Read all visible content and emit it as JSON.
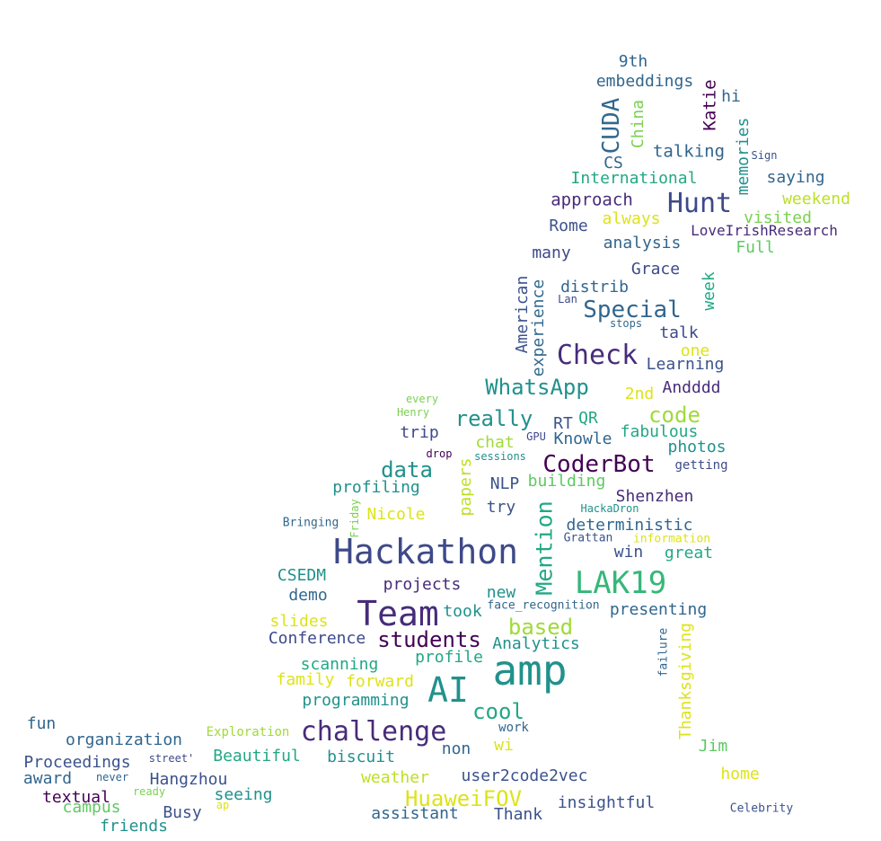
{
  "words": [
    {
      "text": "9th",
      "color": "#31668e",
      "rotate": false
    },
    {
      "text": "embeddings",
      "color": "#31668e",
      "rotate": false
    },
    {
      "text": "Katie",
      "color": "#440154",
      "rotate": true
    },
    {
      "text": "hi",
      "color": "#31668e",
      "rotate": false
    },
    {
      "text": "CUDA",
      "color": "#31688e",
      "rotate": true
    },
    {
      "text": "China",
      "color": "#7ad151",
      "rotate": true
    },
    {
      "text": "memories",
      "color": "#21918c",
      "rotate": true
    },
    {
      "text": "Sign",
      "color": "#3b528b",
      "rotate": false
    },
    {
      "text": "talking",
      "color": "#31668e",
      "rotate": false
    },
    {
      "text": "CS",
      "color": "#31668e",
      "rotate": false
    },
    {
      "text": "International",
      "color": "#22a884",
      "rotate": false
    },
    {
      "text": "saying",
      "color": "#31668e",
      "rotate": false
    },
    {
      "text": "Hunt",
      "color": "#3e4989",
      "rotate": false
    },
    {
      "text": "approach",
      "color": "#472c7a",
      "rotate": false
    },
    {
      "text": "weekend",
      "color": "#bddf26",
      "rotate": false
    },
    {
      "text": "always",
      "color": "#dde318",
      "rotate": false
    },
    {
      "text": "visited",
      "color": "#7ad151",
      "rotate": false
    },
    {
      "text": "Rome",
      "color": "#3b528b",
      "rotate": false
    },
    {
      "text": "LoveIrishResearch",
      "color": "#472c7a",
      "rotate": false
    },
    {
      "text": "analysis",
      "color": "#31668e",
      "rotate": false
    },
    {
      "text": "Full",
      "color": "#5ec962",
      "rotate": false
    },
    {
      "text": "many",
      "color": "#3e4989",
      "rotate": false
    },
    {
      "text": "Grace",
      "color": "#3e4989",
      "rotate": false
    },
    {
      "text": "American",
      "color": "#3b528b",
      "rotate": true
    },
    {
      "text": "experience",
      "color": "#31688e",
      "rotate": true
    },
    {
      "text": "distrib",
      "color": "#31668e",
      "rotate": false
    },
    {
      "text": "week",
      "color": "#22a884",
      "rotate": true
    },
    {
      "text": "Lan",
      "color": "#3e4989",
      "rotate": false
    },
    {
      "text": "Special",
      "color": "#31668e",
      "rotate": false
    },
    {
      "text": "stops",
      "color": "#31688e",
      "rotate": false
    },
    {
      "text": "talk",
      "color": "#3e4989",
      "rotate": false
    },
    {
      "text": "Check",
      "color": "#472c7a",
      "rotate": false
    },
    {
      "text": "one",
      "color": "#dde318",
      "rotate": false
    },
    {
      "text": "Learning",
      "color": "#3b528b",
      "rotate": false
    },
    {
      "text": "every",
      "color": "#7ad151",
      "rotate": false
    },
    {
      "text": "WhatsApp",
      "color": "#21918c",
      "rotate": false
    },
    {
      "text": "2nd",
      "color": "#dde318",
      "rotate": false
    },
    {
      "text": "Andddd",
      "color": "#472c7a",
      "rotate": false
    },
    {
      "text": "Henry",
      "color": "#7ad151",
      "rotate": false
    },
    {
      "text": "really",
      "color": "#21918c",
      "rotate": false
    },
    {
      "text": "code",
      "color": "#a0da39",
      "rotate": false
    },
    {
      "text": "RT",
      "color": "#3b528b",
      "rotate": false
    },
    {
      "text": "QR",
      "color": "#22a884",
      "rotate": false
    },
    {
      "text": "trip",
      "color": "#3e4989",
      "rotate": false
    },
    {
      "text": "fabulous",
      "color": "#22a884",
      "rotate": false
    },
    {
      "text": "Knowle",
      "color": "#31668e",
      "rotate": false
    },
    {
      "text": "chat",
      "color": "#a0da39",
      "rotate": false
    },
    {
      "text": "GPU",
      "color": "#3e4989",
      "rotate": false
    },
    {
      "text": "photos",
      "color": "#21918c",
      "rotate": false
    },
    {
      "text": "drop",
      "color": "#440154",
      "rotate": false
    },
    {
      "text": "sessions",
      "color": "#21918c",
      "rotate": false
    },
    {
      "text": "getting",
      "color": "#3e4989",
      "rotate": false
    },
    {
      "text": "data",
      "color": "#21918c",
      "rotate": false
    },
    {
      "text": "papers",
      "color": "#bddf26",
      "rotate": true
    },
    {
      "text": "CoderBot",
      "color": "#440154",
      "rotate": false
    },
    {
      "text": "NLP",
      "color": "#3b528b",
      "rotate": false
    },
    {
      "text": "building",
      "color": "#5ec962",
      "rotate": false
    },
    {
      "text": "profiling",
      "color": "#21918c",
      "rotate": false
    },
    {
      "text": "Shenzhen",
      "color": "#472c7a",
      "rotate": false
    },
    {
      "text": "try",
      "color": "#3b528b",
      "rotate": false
    },
    {
      "text": "Mention",
      "color": "#22a884",
      "rotate": true
    },
    {
      "text": "HackaDron",
      "color": "#21918c",
      "rotate": false
    },
    {
      "text": "Nicole",
      "color": "#dde318",
      "rotate": false
    },
    {
      "text": "Friday",
      "color": "#7ad151",
      "rotate": true
    },
    {
      "text": "deterministic",
      "color": "#31668e",
      "rotate": false
    },
    {
      "text": "Bringing",
      "color": "#31668e",
      "rotate": false
    },
    {
      "text": "Grattan",
      "color": "#3b528b",
      "rotate": false
    },
    {
      "text": "information",
      "color": "#dde318",
      "rotate": false
    },
    {
      "text": "Hackathon",
      "color": "#3e4989",
      "rotate": false
    },
    {
      "text": "win",
      "color": "#3b528b",
      "rotate": false
    },
    {
      "text": "great",
      "color": "#22a884",
      "rotate": false
    },
    {
      "text": "CSEDM",
      "color": "#21918c",
      "rotate": false
    },
    {
      "text": "LAK19",
      "color": "#35b779",
      "rotate": false
    },
    {
      "text": "projects",
      "color": "#472c7a",
      "rotate": false
    },
    {
      "text": "demo",
      "color": "#31688e",
      "rotate": false
    },
    {
      "text": "new",
      "color": "#21918c",
      "rotate": false
    },
    {
      "text": "face_recognition",
      "color": "#31668e",
      "rotate": false
    },
    {
      "text": "Team",
      "color": "#472c7a",
      "rotate": false
    },
    {
      "text": "took",
      "color": "#21918c",
      "rotate": false
    },
    {
      "text": "presenting",
      "color": "#31668e",
      "rotate": false
    },
    {
      "text": "slides",
      "color": "#dde318",
      "rotate": false
    },
    {
      "text": "based",
      "color": "#a0da39",
      "rotate": false
    },
    {
      "text": "Thanksgiving",
      "color": "#dde318",
      "rotate": true
    },
    {
      "text": "Conference",
      "color": "#3e4989",
      "rotate": false
    },
    {
      "text": "students",
      "color": "#440154",
      "rotate": false
    },
    {
      "text": "Analytics",
      "color": "#21918c",
      "rotate": false
    },
    {
      "text": "failure",
      "color": "#31668e",
      "rotate": true
    },
    {
      "text": "profile",
      "color": "#22a884",
      "rotate": false
    },
    {
      "text": "scanning",
      "color": "#22a884",
      "rotate": false
    },
    {
      "text": "amp",
      "color": "#21918c",
      "rotate": false
    },
    {
      "text": "family",
      "color": "#dde318",
      "rotate": false
    },
    {
      "text": "forward",
      "color": "#dde318",
      "rotate": false
    },
    {
      "text": "AI",
      "color": "#21918c",
      "rotate": false
    },
    {
      "text": "programming",
      "color": "#21918c",
      "rotate": false
    },
    {
      "text": "cool",
      "color": "#22a884",
      "rotate": false
    },
    {
      "text": "fun",
      "color": "#31668e",
      "rotate": false
    },
    {
      "text": "challenge",
      "color": "#472c7a",
      "rotate": false
    },
    {
      "text": "work",
      "color": "#31668e",
      "rotate": false
    },
    {
      "text": "Exploration",
      "color": "#a0da39",
      "rotate": false
    },
    {
      "text": "organization",
      "color": "#31668e",
      "rotate": false
    },
    {
      "text": "wi",
      "color": "#dde318",
      "rotate": false
    },
    {
      "text": "Jim",
      "color": "#5ec962",
      "rotate": false
    },
    {
      "text": "non",
      "color": "#31668e",
      "rotate": false
    },
    {
      "text": "Beautiful",
      "color": "#22a884",
      "rotate": false
    },
    {
      "text": "biscuit",
      "color": "#21918c",
      "rotate": false
    },
    {
      "text": "Proceedings",
      "color": "#3b528b",
      "rotate": false
    },
    {
      "text": "street'",
      "color": "#3e4989",
      "rotate": false
    },
    {
      "text": "never",
      "color": "#31668e",
      "rotate": false
    },
    {
      "text": "award",
      "color": "#31668e",
      "rotate": false
    },
    {
      "text": "Hangzhou",
      "color": "#3b528b",
      "rotate": false
    },
    {
      "text": "weather",
      "color": "#bddf26",
      "rotate": false
    },
    {
      "text": "user2code2vec",
      "color": "#3b528b",
      "rotate": false
    },
    {
      "text": "home",
      "color": "#dde318",
      "rotate": false
    },
    {
      "text": "ready",
      "color": "#7ad151",
      "rotate": false
    },
    {
      "text": "textual",
      "color": "#440154",
      "rotate": false
    },
    {
      "text": "seeing",
      "color": "#21918c",
      "rotate": false
    },
    {
      "text": "HuaweiFOV",
      "color": "#dde318",
      "rotate": false
    },
    {
      "text": "insightful",
      "color": "#3b528b",
      "rotate": false
    },
    {
      "text": "ap",
      "color": "#dde318",
      "rotate": false
    },
    {
      "text": "campus",
      "color": "#5ec962",
      "rotate": false
    },
    {
      "text": "Busy",
      "color": "#3b528b",
      "rotate": false
    },
    {
      "text": "assistant",
      "color": "#31668e",
      "rotate": false
    },
    {
      "text": "Thank",
      "color": "#3b528b",
      "rotate": false
    },
    {
      "text": "Celebrity",
      "color": "#3b528b",
      "rotate": false
    },
    {
      "text": "friends",
      "color": "#21918c",
      "rotate": false
    }
  ]
}
